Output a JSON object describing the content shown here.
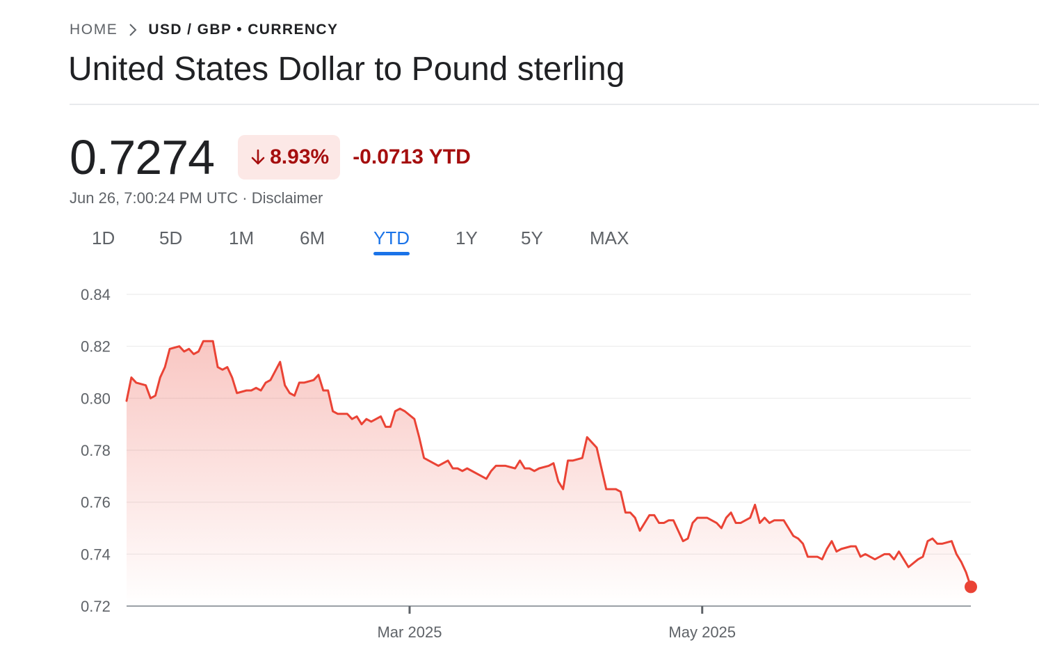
{
  "breadcrumb": {
    "home": "HOME",
    "current": "USD / GBP • CURRENCY"
  },
  "title": "United States Dollar to Pound sterling",
  "quote": {
    "price": "0.7274",
    "change_pct": "8.93%",
    "change_abs": "-0.0713 YTD",
    "direction": "down",
    "timestamp": "Jun 26, 7:00:24 PM UTC",
    "separator": "·",
    "disclaimer": "Disclaimer"
  },
  "tabs": [
    {
      "label": "1D",
      "active": false
    },
    {
      "label": "5D",
      "active": false
    },
    {
      "label": "1M",
      "active": false
    },
    {
      "label": "6M",
      "active": false
    },
    {
      "label": "YTD",
      "active": true
    },
    {
      "label": "1Y",
      "active": false
    },
    {
      "label": "5Y",
      "active": false
    },
    {
      "label": "MAX",
      "active": false
    }
  ],
  "colors": {
    "line": "#ea4335",
    "negative_text": "#a50e0e",
    "negative_bg": "#fce8e6",
    "active_tab": "#1a73e8"
  },
  "chart_data": {
    "type": "area",
    "title": "",
    "xlabel": "",
    "ylabel": "",
    "ylim": [
      0.72,
      0.84
    ],
    "yticks": [
      "0.84",
      "0.82",
      "0.80",
      "0.78",
      "0.76",
      "0.74",
      "0.72"
    ],
    "xtick_labels": [
      {
        "label": "Mar 2025",
        "date": "2025-03-01"
      },
      {
        "label": "May 2025",
        "date": "2025-05-01"
      }
    ],
    "x_range": [
      "2025-01-01",
      "2025-06-26"
    ],
    "grid": true,
    "last_point_marker": true,
    "series": [
      {
        "x": [
          "2025-01-01",
          "2025-01-02",
          "2025-01-03",
          "2025-01-05",
          "2025-01-06",
          "2025-01-07",
          "2025-01-08",
          "2025-01-09",
          "2025-01-10",
          "2025-01-12",
          "2025-01-13",
          "2025-01-14",
          "2025-01-15",
          "2025-01-16",
          "2025-01-17",
          "2025-01-19",
          "2025-01-20",
          "2025-01-21",
          "2025-01-22",
          "2025-01-23",
          "2025-01-24",
          "2025-01-26",
          "2025-01-27",
          "2025-01-28",
          "2025-01-29",
          "2025-01-30",
          "2025-01-31",
          "2025-02-02",
          "2025-02-03",
          "2025-02-04",
          "2025-02-05",
          "2025-02-06",
          "2025-02-07",
          "2025-02-09",
          "2025-02-10",
          "2025-02-11",
          "2025-02-12",
          "2025-02-13",
          "2025-02-14",
          "2025-02-16",
          "2025-02-17",
          "2025-02-18",
          "2025-02-19",
          "2025-02-20",
          "2025-02-21",
          "2025-02-23",
          "2025-02-24",
          "2025-02-25",
          "2025-02-26",
          "2025-02-27",
          "2025-02-28",
          "2025-03-02",
          "2025-03-03",
          "2025-03-04",
          "2025-03-05",
          "2025-03-06",
          "2025-03-07",
          "2025-03-09",
          "2025-03-10",
          "2025-03-11",
          "2025-03-12",
          "2025-03-13",
          "2025-03-14",
          "2025-03-16",
          "2025-03-17",
          "2025-03-18",
          "2025-03-19",
          "2025-03-20",
          "2025-03-21",
          "2025-03-23",
          "2025-03-24",
          "2025-03-25",
          "2025-03-26",
          "2025-03-27",
          "2025-03-28",
          "2025-03-30",
          "2025-03-31",
          "2025-04-01",
          "2025-04-02",
          "2025-04-03",
          "2025-04-04",
          "2025-04-06",
          "2025-04-07",
          "2025-04-08",
          "2025-04-09",
          "2025-04-10",
          "2025-04-11",
          "2025-04-13",
          "2025-04-14",
          "2025-04-15",
          "2025-04-16",
          "2025-04-17",
          "2025-04-18",
          "2025-04-20",
          "2025-04-21",
          "2025-04-22",
          "2025-04-23",
          "2025-04-24",
          "2025-04-25",
          "2025-04-27",
          "2025-04-28",
          "2025-04-29",
          "2025-04-30",
          "2025-05-02",
          "2025-05-04",
          "2025-05-05",
          "2025-05-06",
          "2025-05-07",
          "2025-05-08",
          "2025-05-09",
          "2025-05-11",
          "2025-05-12",
          "2025-05-13",
          "2025-05-14",
          "2025-05-15",
          "2025-05-16",
          "2025-05-18",
          "2025-05-19",
          "2025-05-20",
          "2025-05-21",
          "2025-05-22",
          "2025-05-23",
          "2025-05-25",
          "2025-05-26",
          "2025-05-27",
          "2025-05-28",
          "2025-05-29",
          "2025-05-30",
          "2025-06-01",
          "2025-06-02",
          "2025-06-03",
          "2025-06-04",
          "2025-06-05",
          "2025-06-06",
          "2025-06-08",
          "2025-06-09",
          "2025-06-10",
          "2025-06-11",
          "2025-06-12",
          "2025-06-13",
          "2025-06-15",
          "2025-06-16",
          "2025-06-17",
          "2025-06-18",
          "2025-06-19",
          "2025-06-20",
          "2025-06-22",
          "2025-06-23",
          "2025-06-24",
          "2025-06-25",
          "2025-06-26"
        ],
        "values": [
          0.799,
          0.808,
          0.806,
          0.805,
          0.8,
          0.801,
          0.808,
          0.812,
          0.819,
          0.82,
          0.818,
          0.819,
          0.817,
          0.818,
          0.822,
          0.822,
          0.812,
          0.811,
          0.812,
          0.808,
          0.802,
          0.803,
          0.803,
          0.804,
          0.803,
          0.806,
          0.807,
          0.814,
          0.805,
          0.802,
          0.801,
          0.806,
          0.806,
          0.807,
          0.809,
          0.803,
          0.803,
          0.795,
          0.794,
          0.794,
          0.792,
          0.793,
          0.79,
          0.792,
          0.791,
          0.793,
          0.789,
          0.789,
          0.795,
          0.796,
          0.795,
          0.792,
          0.785,
          0.777,
          0.776,
          0.775,
          0.774,
          0.776,
          0.773,
          0.773,
          0.772,
          0.773,
          0.772,
          0.77,
          0.769,
          0.772,
          0.774,
          0.774,
          0.774,
          0.773,
          0.776,
          0.773,
          0.773,
          0.772,
          0.773,
          0.774,
          0.775,
          0.768,
          0.765,
          0.776,
          0.776,
          0.777,
          0.785,
          0.783,
          0.781,
          0.773,
          0.765,
          0.765,
          0.764,
          0.756,
          0.756,
          0.754,
          0.749,
          0.755,
          0.755,
          0.752,
          0.752,
          0.753,
          0.753,
          0.745,
          0.746,
          0.752,
          0.754,
          0.754,
          0.752,
          0.75,
          0.754,
          0.756,
          0.752,
          0.752,
          0.754,
          0.759,
          0.752,
          0.754,
          0.752,
          0.753,
          0.753,
          0.75,
          0.747,
          0.746,
          0.744,
          0.739,
          0.739,
          0.738,
          0.742,
          0.745,
          0.741,
          0.742,
          0.743,
          0.743,
          0.739,
          0.74,
          0.739,
          0.738,
          0.74,
          0.74,
          0.738,
          0.741,
          0.738,
          0.735,
          0.738,
          0.739,
          0.745,
          0.746,
          0.744,
          0.744,
          0.745,
          0.74,
          0.737,
          0.733,
          0.7274
        ]
      }
    ]
  }
}
